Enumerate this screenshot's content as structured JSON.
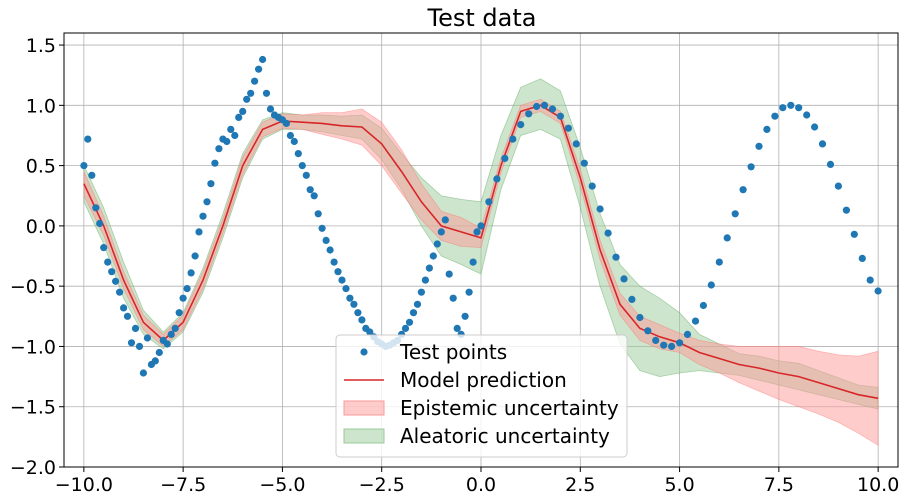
{
  "chart_data": {
    "type": "scatter",
    "title": "Test data",
    "xlabel": "",
    "ylabel": "",
    "xlim": [
      -10.5,
      10.5
    ],
    "ylim": [
      -2.0,
      1.6
    ],
    "grid": true,
    "legend_position": "lower-center",
    "x_ticks": [
      -10.0,
      -7.5,
      -5.0,
      -2.5,
      0.0,
      2.5,
      5.0,
      7.5,
      10.0
    ],
    "x_tick_labels": [
      "−10.0",
      "−7.5",
      "−5.0",
      "−2.5",
      "0.0",
      "2.5",
      "5.0",
      "7.5",
      "10.0"
    ],
    "y_ticks": [
      -2.0,
      -1.5,
      -1.0,
      -0.5,
      0.0,
      0.5,
      1.0,
      1.5
    ],
    "y_tick_labels": [
      "−2.0",
      "−1.5",
      "−1.0",
      "−0.5",
      "0.0",
      "0.5",
      "1.0",
      "1.5"
    ],
    "colors": {
      "points": "#1f77b4",
      "prediction": "#d62728",
      "epistemic": "#ff9999",
      "aleatoric": "#99cc99"
    },
    "series": [
      {
        "name": "Test points",
        "kind": "scatter",
        "x": [
          -10.0,
          -9.9,
          -9.8,
          -9.7,
          -9.6,
          -9.5,
          -9.4,
          -9.3,
          -9.2,
          -9.1,
          -9.0,
          -8.9,
          -8.8,
          -8.7,
          -8.6,
          -8.5,
          -8.4,
          -8.3,
          -8.2,
          -8.1,
          -8.0,
          -7.9,
          -7.8,
          -7.7,
          -7.6,
          -7.5,
          -7.4,
          -7.3,
          -7.2,
          -7.1,
          -7.0,
          -6.9,
          -6.8,
          -6.7,
          -6.6,
          -6.5,
          -6.4,
          -6.3,
          -6.2,
          -6.1,
          -6.0,
          -5.9,
          -5.8,
          -5.7,
          -5.6,
          -5.5,
          -5.4,
          -5.3,
          -5.2,
          -5.1,
          -5.0,
          -4.9,
          -4.8,
          -4.7,
          -4.6,
          -4.5,
          -4.4,
          -4.3,
          -4.2,
          -4.1,
          -4.0,
          -3.9,
          -3.8,
          -3.7,
          -3.6,
          -3.5,
          -3.4,
          -3.3,
          -3.2,
          -3.1,
          -3.0,
          -2.9,
          -2.8,
          -2.7,
          -2.6,
          -2.5,
          -2.4,
          -2.3,
          -2.2,
          -2.1,
          -2.0,
          -1.9,
          -1.8,
          -1.7,
          -1.6,
          -1.5,
          -1.4,
          -1.3,
          -1.2,
          -1.1,
          -1.0,
          -0.9,
          -0.8,
          -0.7,
          -0.6,
          -0.5,
          -0.4,
          -0.3,
          -0.2,
          -0.1,
          0.0,
          0.2,
          0.4,
          0.6,
          0.8,
          1.0,
          1.2,
          1.4,
          1.6,
          1.8,
          2.0,
          2.2,
          2.4,
          2.6,
          2.8,
          3.0,
          3.2,
          3.4,
          3.6,
          3.8,
          4.0,
          4.2,
          4.4,
          4.6,
          4.8,
          5.0,
          5.2,
          5.4,
          5.6,
          5.8,
          6.0,
          6.2,
          6.4,
          6.6,
          6.8,
          7.0,
          7.2,
          7.4,
          7.6,
          7.8,
          8.0,
          8.2,
          8.4,
          8.6,
          8.8,
          9.0,
          9.2,
          9.4,
          9.6,
          9.8,
          10.0
        ],
        "y": [
          0.5,
          0.72,
          0.42,
          0.15,
          0.02,
          -0.18,
          -0.3,
          -0.38,
          -0.46,
          -0.55,
          -0.68,
          -0.75,
          -0.97,
          -0.85,
          -1.0,
          -1.22,
          -0.93,
          -1.15,
          -1.12,
          -1.05,
          -0.95,
          -0.98,
          -0.9,
          -0.85,
          -0.72,
          -0.6,
          -0.52,
          -0.39,
          -0.25,
          -0.05,
          0.08,
          0.2,
          0.35,
          0.52,
          0.64,
          0.72,
          0.7,
          0.8,
          0.75,
          0.9,
          0.95,
          1.05,
          1.1,
          1.2,
          1.3,
          1.38,
          1.1,
          0.97,
          0.92,
          0.9,
          0.88,
          0.85,
          0.75,
          0.7,
          0.6,
          0.5,
          0.42,
          0.3,
          0.25,
          0.1,
          -0.02,
          -0.12,
          -0.2,
          -0.3,
          -0.38,
          -0.45,
          -0.52,
          -0.6,
          -0.65,
          -0.72,
          -0.78,
          -0.85,
          -0.88,
          -0.92,
          -0.96,
          -0.98,
          -1.0,
          -0.99,
          -0.97,
          -0.95,
          -0.9,
          -0.85,
          -0.8,
          -0.72,
          -0.65,
          -0.55,
          -0.45,
          -0.35,
          -0.25,
          -0.15,
          -0.05,
          0.05,
          -0.4,
          -0.6,
          -0.85,
          -0.9,
          -0.75,
          -0.55,
          -0.3,
          -0.05,
          0.0,
          0.2,
          0.39,
          0.56,
          0.72,
          0.84,
          0.93,
          0.99,
          1.0,
          0.97,
          0.91,
          0.81,
          0.68,
          0.52,
          0.33,
          0.14,
          -0.06,
          -0.26,
          -0.44,
          -0.61,
          -0.76,
          -0.87,
          -0.95,
          -0.99,
          -1.0,
          -0.97,
          -0.9,
          -0.79,
          -0.66,
          -0.49,
          -0.3,
          -0.1,
          0.1,
          0.3,
          0.49,
          0.66,
          0.8,
          0.91,
          0.98,
          1.0,
          0.98,
          0.92,
          0.82,
          0.68,
          0.51,
          0.33,
          0.13,
          -0.07,
          -0.27,
          -0.45,
          -0.54
        ]
      },
      {
        "name": "Model prediction",
        "kind": "line",
        "x": [
          -10.0,
          -9.5,
          -9.0,
          -8.5,
          -8.0,
          -7.5,
          -7.0,
          -6.5,
          -6.0,
          -5.5,
          -5.0,
          -4.5,
          -4.0,
          -3.5,
          -3.0,
          -2.5,
          -2.0,
          -1.5,
          -1.0,
          -0.5,
          0.0,
          0.5,
          1.0,
          1.5,
          2.0,
          2.5,
          3.0,
          3.5,
          4.0,
          4.5,
          5.0,
          5.5,
          6.0,
          6.5,
          7.0,
          7.5,
          8.0,
          8.5,
          9.0,
          9.5,
          10.0
        ],
        "y": [
          0.35,
          0.0,
          -0.45,
          -0.8,
          -0.95,
          -0.8,
          -0.45,
          0.0,
          0.5,
          0.8,
          0.87,
          0.86,
          0.85,
          0.83,
          0.82,
          0.68,
          0.45,
          0.2,
          0.0,
          -0.05,
          -0.1,
          0.5,
          0.95,
          1.0,
          0.9,
          0.4,
          -0.2,
          -0.65,
          -0.85,
          -0.92,
          -0.97,
          -1.05,
          -1.1,
          -1.15,
          -1.18,
          -1.22,
          -1.25,
          -1.3,
          -1.35,
          -1.4,
          -1.43
        ]
      },
      {
        "name": "Epistemic uncertainty",
        "kind": "band",
        "x": [
          -10.0,
          -9.5,
          -9.0,
          -8.5,
          -8.0,
          -7.5,
          -7.0,
          -6.5,
          -6.0,
          -5.5,
          -5.0,
          -4.5,
          -4.0,
          -3.5,
          -3.0,
          -2.5,
          -2.0,
          -1.5,
          -1.0,
          -0.5,
          0.0,
          0.5,
          1.0,
          1.5,
          2.0,
          2.5,
          3.0,
          3.5,
          4.0,
          4.5,
          5.0,
          5.5,
          6.0,
          6.5,
          7.0,
          7.5,
          8.0,
          8.5,
          9.0,
          9.5,
          10.0
        ],
        "lower": [
          0.25,
          -0.08,
          -0.52,
          -0.86,
          -1.0,
          -0.86,
          -0.52,
          -0.06,
          0.43,
          0.74,
          0.81,
          0.8,
          0.76,
          0.72,
          0.67,
          0.5,
          0.27,
          0.05,
          -0.12,
          -0.17,
          -0.18,
          0.44,
          0.9,
          0.95,
          0.85,
          0.33,
          -0.28,
          -0.74,
          -0.95,
          -1.02,
          -1.05,
          -1.15,
          -1.22,
          -1.3,
          -1.37,
          -1.44,
          -1.5,
          -1.56,
          -1.63,
          -1.72,
          -1.82
        ],
        "upper": [
          0.45,
          0.08,
          -0.38,
          -0.74,
          -0.9,
          -0.74,
          -0.38,
          0.06,
          0.57,
          0.86,
          0.93,
          0.92,
          0.94,
          0.94,
          0.97,
          0.86,
          0.63,
          0.35,
          0.12,
          0.07,
          -0.02,
          0.56,
          1.0,
          1.05,
          0.95,
          0.47,
          -0.12,
          -0.56,
          -0.75,
          -0.82,
          -0.89,
          -0.95,
          -0.98,
          -1.0,
          -1.0,
          -1.0,
          -1.0,
          -1.04,
          -1.07,
          -1.08,
          -1.04
        ]
      },
      {
        "name": "Aleatoric uncertainty",
        "kind": "band",
        "x": [
          -10.0,
          -9.5,
          -9.0,
          -8.5,
          -8.0,
          -7.5,
          -7.0,
          -6.5,
          -6.0,
          -5.5,
          -5.0,
          -4.5,
          -4.0,
          -3.5,
          -3.0,
          -2.5,
          -2.0,
          -1.5,
          -1.0,
          -0.5,
          0.0,
          0.5,
          1.0,
          1.5,
          2.0,
          2.5,
          3.0,
          3.5,
          4.0,
          4.5,
          5.0,
          5.5,
          6.0,
          6.5,
          7.0,
          7.5,
          8.0,
          8.5,
          9.0,
          9.5,
          10.0
        ],
        "lower": [
          0.2,
          -0.15,
          -0.6,
          -0.9,
          -1.02,
          -0.88,
          -0.55,
          -0.1,
          0.4,
          0.72,
          0.8,
          0.8,
          0.78,
          0.75,
          0.72,
          0.55,
          0.3,
          0.0,
          -0.25,
          -0.32,
          -0.4,
          0.3,
          0.75,
          0.8,
          0.72,
          0.15,
          -0.5,
          -0.98,
          -1.2,
          -1.25,
          -1.22,
          -1.2,
          -1.22,
          -1.24,
          -1.28,
          -1.32,
          -1.36,
          -1.4,
          -1.44,
          -1.48,
          -1.52
        ],
        "upper": [
          0.5,
          0.15,
          -0.3,
          -0.7,
          -0.88,
          -0.72,
          -0.35,
          0.1,
          0.6,
          0.88,
          0.94,
          0.92,
          0.92,
          0.91,
          0.92,
          0.81,
          0.6,
          0.4,
          0.25,
          0.22,
          0.2,
          0.75,
          1.15,
          1.22,
          1.12,
          0.65,
          0.1,
          -0.32,
          -0.5,
          -0.6,
          -0.72,
          -0.9,
          -0.98,
          -1.06,
          -1.08,
          -1.12,
          -1.14,
          -1.2,
          -1.26,
          -1.32,
          -1.34
        ]
      }
    ],
    "legend": [
      {
        "label": "Test points",
        "kind": "marker",
        "color_key": "points"
      },
      {
        "label": "Model prediction",
        "kind": "line",
        "color_key": "prediction"
      },
      {
        "label": "Epistemic uncertainty",
        "kind": "patch",
        "color_key": "epistemic"
      },
      {
        "label": "Aleatoric uncertainty",
        "kind": "patch",
        "color_key": "aleatoric"
      }
    ]
  }
}
